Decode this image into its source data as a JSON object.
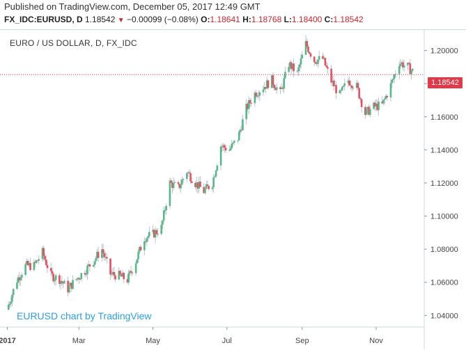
{
  "header": {
    "published": "Published on TradingView.com, December 05, 2017 12:49 GMT",
    "symbol": "FX_IDC:EURUSD, D",
    "last": "1.18542",
    "change": "−0.00099 (−0.08%)",
    "o_label": "O:",
    "o_value": "1.18641",
    "h_label": "H:",
    "h_value": "1.18768",
    "l_label": "L:",
    "l_value": "1.18400",
    "c_label": "C:",
    "c_value": "1.18542"
  },
  "chart_data": {
    "type": "candlestick",
    "title": "EURO / US DOLLAR, D, FX_IDC",
    "watermark": "EURUSD chart by TradingView",
    "last_price_label": "1.18542",
    "last_price": 1.18542,
    "ylim": [
      1.033,
      1.212
    ],
    "y_ticks": [
      1.04,
      1.06,
      1.08,
      1.1,
      1.12,
      1.14,
      1.16,
      1.18,
      1.2
    ],
    "y_tick_labels": [
      "1.04000",
      "1.06000",
      "1.08000",
      "1.10000",
      "1.12000",
      "1.14000",
      "1.16000",
      "1.18000",
      "1.20000"
    ],
    "x_tick_labels": [
      "2017",
      "Mar",
      "May",
      "Jul",
      "Sep",
      "Nov"
    ],
    "x_tick_dates": [
      "2017-01-01",
      "2017-03-01",
      "2017-05-01",
      "2017-07-01",
      "2017-09-01",
      "2017-11-01"
    ],
    "x_range": [
      "2016-12-30",
      "2017-12-10"
    ],
    "colors": {
      "up": "#53b987",
      "down": "#eb4d5c",
      "last_line": "#e0394a"
    },
    "closes": [
      [
        "2017-01-02",
        1.0465
      ],
      [
        "2017-01-09",
        1.0615
      ],
      [
        "2017-01-16",
        1.07
      ],
      [
        "2017-01-23",
        1.07
      ],
      [
        "2017-01-30",
        1.078
      ],
      [
        "2017-02-06",
        1.064
      ],
      [
        "2017-02-13",
        1.062
      ],
      [
        "2017-02-20",
        1.056
      ],
      [
        "2017-02-27",
        1.062
      ],
      [
        "2017-03-06",
        1.067
      ],
      [
        "2017-03-13",
        1.073
      ],
      [
        "2017-03-20",
        1.08
      ],
      [
        "2017-03-27",
        1.065
      ],
      [
        "2017-04-03",
        1.064
      ],
      [
        "2017-04-10",
        1.0615
      ],
      [
        "2017-04-17",
        1.073
      ],
      [
        "2017-04-24",
        1.087
      ],
      [
        "2017-05-01",
        1.089
      ],
      [
        "2017-05-08",
        1.093
      ],
      [
        "2017-05-15",
        1.12
      ],
      [
        "2017-05-22",
        1.117
      ],
      [
        "2017-05-29",
        1.127
      ],
      [
        "2017-06-05",
        1.12
      ],
      [
        "2017-06-12",
        1.115
      ],
      [
        "2017-06-19",
        1.12
      ],
      [
        "2017-06-26",
        1.1425
      ],
      [
        "2017-07-03",
        1.14
      ],
      [
        "2017-07-10",
        1.147
      ],
      [
        "2017-07-17",
        1.165
      ],
      [
        "2017-07-24",
        1.174
      ],
      [
        "2017-07-31",
        1.178
      ],
      [
        "2017-08-07",
        1.182
      ],
      [
        "2017-08-14",
        1.174
      ],
      [
        "2017-08-21",
        1.192
      ],
      [
        "2017-08-28",
        1.186
      ],
      [
        "2017-09-04",
        1.204
      ],
      [
        "2017-09-11",
        1.194
      ],
      [
        "2017-09-18",
        1.195
      ],
      [
        "2017-09-25",
        1.1815
      ],
      [
        "2017-10-02",
        1.173
      ],
      [
        "2017-10-09",
        1.182
      ],
      [
        "2017-10-16",
        1.178
      ],
      [
        "2017-10-23",
        1.162
      ],
      [
        "2017-10-30",
        1.166
      ],
      [
        "2017-11-06",
        1.167
      ],
      [
        "2017-11-13",
        1.179
      ],
      [
        "2017-11-20",
        1.193
      ],
      [
        "2017-11-27",
        1.19
      ],
      [
        "2017-12-04",
        1.1854
      ]
    ]
  }
}
